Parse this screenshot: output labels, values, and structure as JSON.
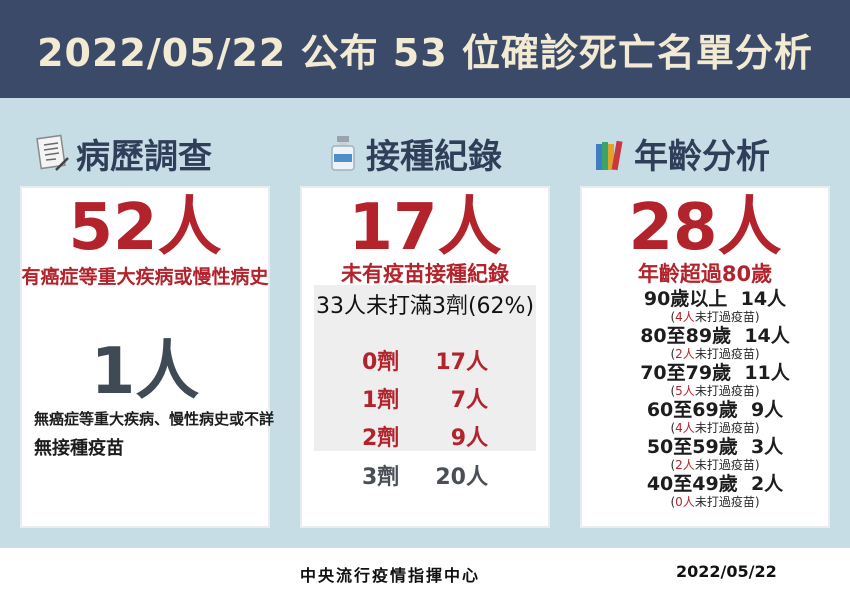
{
  "title": "2022/05/22 公布 53 位確診死亡名單分析",
  "sections": {
    "history": {
      "title": "病歷調查",
      "icon": "document-icon",
      "count1": "52人",
      "desc1": "有癌症等重大疾病或慢性病史",
      "count2": "1人",
      "desc2a": "無癌症等重大疾病、慢性病史或不詳",
      "desc2b": "無接種疫苗"
    },
    "vaccine": {
      "title": "接種紀錄",
      "icon": "vaccine-bottle-icon",
      "count": "17人",
      "desc": "未有疫苗接種紀錄",
      "unmet": "33人未打滿3劑(62%)",
      "doses": [
        {
          "label": "0劑",
          "value": "17人",
          "color": "#b3232c"
        },
        {
          "label": "1劑",
          "value": "7人",
          "color": "#b3232c"
        },
        {
          "label": "2劑",
          "value": "9人",
          "color": "#b3232c"
        },
        {
          "label": "3劑",
          "value": "20人",
          "color": "#4a4f55"
        }
      ]
    },
    "age": {
      "title": "年齡分析",
      "icon": "books-icon",
      "count": "28人",
      "desc": "年齡超過80歲",
      "note_open": "(",
      "note_text": "未打過疫苗)",
      "rows": [
        {
          "label": "90歲以上",
          "value": "14人",
          "unvax": "4人"
        },
        {
          "label": "80至89歲",
          "value": "14人",
          "unvax": "2人"
        },
        {
          "label": "70至79歲",
          "value": "11人",
          "unvax": "5人"
        },
        {
          "label": "60至69歲",
          "value": "9人",
          "unvax": "4人"
        },
        {
          "label": "50至59歲",
          "value": "3人",
          "unvax": "2人"
        },
        {
          "label": "40至49歲",
          "value": "2人",
          "unvax": "0人"
        }
      ]
    }
  },
  "footer": {
    "org": "中央流行疫情指揮中心",
    "date": "2022/05/22"
  },
  "colors": {
    "header_bg": "#3c4a6a",
    "main_bg": "#c7dde6",
    "accent_red": "#b3232c"
  }
}
